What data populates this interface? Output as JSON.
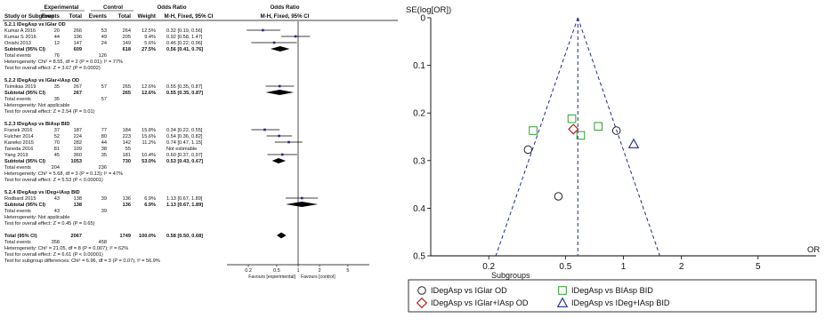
{
  "chart_data": [
    {
      "type": "forest",
      "header": {
        "group1": "Experimental",
        "group2": "Control",
        "or_top": "Odds Ratio",
        "or_top2": "Odds Ratio",
        "cols": [
          "Study or Subgroup",
          "Events",
          "Total",
          "Events",
          "Total",
          "Weight",
          "M-H, Fixed, 95% CI",
          "M-H, Fixed, 95% CI"
        ]
      },
      "rows": [
        {
          "kind": "heading",
          "label": "5.2.1 IDegAsp vs IGlar OD"
        },
        {
          "kind": "study",
          "label": "Kumar A 2016",
          "e1": "20",
          "t1": "266",
          "e2": "53",
          "t2": "264",
          "w": "12.5%",
          "ci": "0.32 [0.19, 0.56]",
          "or": 0.32,
          "lo": 0.19,
          "hi": 0.56
        },
        {
          "kind": "study",
          "label": "Kumar S 2016",
          "e1": "44",
          "t1": "196",
          "e2": "49",
          "t2": "205",
          "w": "9.4%",
          "ci": "0.92 [0.58, 1.47]",
          "or": 0.92,
          "lo": 0.58,
          "hi": 1.47
        },
        {
          "kind": "study",
          "label": "Onishi 2013",
          "e1": "12",
          "t1": "147",
          "e2": "24",
          "t2": "149",
          "w": "5.6%",
          "ci": "0.46 [0.22, 0.96]",
          "or": 0.46,
          "lo": 0.22,
          "hi": 0.96
        },
        {
          "kind": "subtotal",
          "label": "Subtotal (95% CI)",
          "e1": "",
          "t1": "609",
          "e2": "",
          "t2": "618",
          "w": "27.5%",
          "ci": "0.56 [0.41, 0.76]",
          "or": 0.56,
          "lo": 0.41,
          "hi": 0.76
        },
        {
          "kind": "text",
          "label": "Total events",
          "e1": "76",
          "e2": "126"
        },
        {
          "kind": "text",
          "label": "Heterogeneity: Chi² = 8.55, df = 2 (P = 0.01); I² = 77%"
        },
        {
          "kind": "text",
          "label": "Test for overall effect: Z = 3.67 (P = 0.0002)"
        },
        {
          "kind": "blank"
        },
        {
          "kind": "heading",
          "label": "5.2.2 IDegAsp vs IGlar+IAsp OD"
        },
        {
          "kind": "study",
          "label": "Tsimikas 2019",
          "e1": "35",
          "t1": "267",
          "e2": "57",
          "t2": "265",
          "w": "12.6%",
          "ci": "0.55 [0.35, 0.87]",
          "or": 0.55,
          "lo": 0.35,
          "hi": 0.87
        },
        {
          "kind": "subtotal",
          "label": "Subtotal (95% CI)",
          "e1": "",
          "t1": "267",
          "e2": "",
          "t2": "265",
          "w": "12.6%",
          "ci": "0.55 [0.35, 0.87]",
          "or": 0.55,
          "lo": 0.35,
          "hi": 0.87
        },
        {
          "kind": "text",
          "label": "Total events",
          "e1": "35",
          "e2": "57"
        },
        {
          "kind": "text",
          "label": "Heterogeneity: Not applicable"
        },
        {
          "kind": "text",
          "label": "Test for overall effect: Z = 2.54 (P = 0.01)"
        },
        {
          "kind": "blank"
        },
        {
          "kind": "heading",
          "label": "5.2.3 IDegAsp vs BIAsp BID"
        },
        {
          "kind": "study",
          "label": "Franek 2016",
          "e1": "37",
          "t1": "187",
          "e2": "77",
          "t2": "184",
          "w": "15.8%",
          "ci": "0.34 [0.22, 0.55]",
          "or": 0.34,
          "lo": 0.22,
          "hi": 0.55
        },
        {
          "kind": "study",
          "label": "Fulcher 2014",
          "e1": "52",
          "t1": "224",
          "e2": "80",
          "t2": "223",
          "w": "15.6%",
          "ci": "0.54 [0.36, 0.82]",
          "or": 0.54,
          "lo": 0.36,
          "hi": 0.82
        },
        {
          "kind": "study",
          "label": "Kaneko 2015",
          "e1": "70",
          "t1": "282",
          "e2": "44",
          "t2": "142",
          "w": "11.2%",
          "ci": "0.74 [0.47, 1.15]",
          "or": 0.74,
          "lo": 0.47,
          "hi": 1.15
        },
        {
          "kind": "study",
          "label": "Taneda 2016",
          "e1": "81",
          "t1": "109",
          "e2": "38",
          "t2": "55",
          "w": "",
          "ci": "Not estimable"
        },
        {
          "kind": "study",
          "label": "Yang 2019",
          "e1": "45",
          "t1": "360",
          "e2": "35",
          "t2": "181",
          "w": "10.4%",
          "ci": "0.60 [0.37, 0.97]",
          "or": 0.6,
          "lo": 0.37,
          "hi": 0.97
        },
        {
          "kind": "subtotal",
          "label": "Subtotal (95% CI)",
          "e1": "",
          "t1": "1053",
          "e2": "",
          "t2": "730",
          "w": "53.0%",
          "ci": "0.53 [0.43, 0.67]",
          "or": 0.53,
          "lo": 0.43,
          "hi": 0.67
        },
        {
          "kind": "text",
          "label": "Total events",
          "e1": "204",
          "e2": "236"
        },
        {
          "kind": "text",
          "label": "Heterogeneity: Chi² = 5.68, df = 3 (P = 0.13); I² = 47%"
        },
        {
          "kind": "text",
          "label": "Test for overall effect: Z = 5.53 (P < 0.00001)"
        },
        {
          "kind": "blank"
        },
        {
          "kind": "heading",
          "label": "5.2.4 IDegAsp vs IDeg+IAsp BID"
        },
        {
          "kind": "study",
          "label": "Rodbard 2015",
          "e1": "43",
          "t1": "138",
          "e2": "39",
          "t2": "136",
          "w": "6.9%",
          "ci": "1.13 [0.67, 1.89]",
          "or": 1.13,
          "lo": 0.67,
          "hi": 1.89
        },
        {
          "kind": "subtotal",
          "label": "Subtotal (95% CI)",
          "e1": "",
          "t1": "138",
          "e2": "",
          "t2": "136",
          "w": "6.9%",
          "ci": "1.13 [0.67, 1.89]",
          "or": 1.13,
          "lo": 0.67,
          "hi": 1.89
        },
        {
          "kind": "text",
          "label": "Total events",
          "e1": "43",
          "e2": "39"
        },
        {
          "kind": "text",
          "label": "Heterogeneity: Not applicable"
        },
        {
          "kind": "text",
          "label": "Test for overall effect: Z = 0.45 (P = 0.65)"
        },
        {
          "kind": "blank"
        },
        {
          "kind": "total",
          "label": "Total (95% CI)",
          "e1": "",
          "t1": "2067",
          "e2": "",
          "t2": "1749",
          "w": "100.0%",
          "ci": "0.58 [0.50, 0.68]",
          "or": 0.58,
          "lo": 0.5,
          "hi": 0.68
        },
        {
          "kind": "text",
          "label": "Total events",
          "e1": "358",
          "e2": "458"
        },
        {
          "kind": "text",
          "label": "Heterogeneity: Chi² = 21.05, df = 8 (P = 0.007); I² = 62%"
        },
        {
          "kind": "text",
          "label": "Test for overall effect: Z = 6.61 (P < 0.00001)"
        },
        {
          "kind": "text",
          "label": "Test for subgroup differences: Chi² = 6.96, df = 3 (P = 0.07), I² = 56.9%"
        }
      ],
      "axis": {
        "scale": "log",
        "xlim": [
          0.1,
          10
        ],
        "ticks": [
          "0.2",
          "0.5",
          "1",
          "2",
          "5"
        ],
        "tick_values": [
          0.2,
          0.5,
          1,
          2,
          5
        ],
        "left_label": "Favours [experimental]",
        "right_label": "Favours [control]"
      },
      "colors": {
        "study_marker": "#1f2a8c",
        "line": "#000000"
      }
    },
    {
      "type": "scatter",
      "ylabel": "SE(log[OR])",
      "xlabel": "OR",
      "x_scale": "log",
      "xlim": [
        0.1,
        10
      ],
      "x_ticks": [
        "0.2",
        "0.5",
        "1",
        "2",
        "5"
      ],
      "x_tick_values": [
        0.2,
        0.5,
        1,
        2,
        5
      ],
      "ylim": [
        0,
        0.5
      ],
      "y_ticks": [
        "0",
        "0.1",
        "0.2",
        "0.3",
        "0.4",
        "0.5"
      ],
      "y_tick_values": [
        0,
        0.1,
        0.2,
        0.3,
        0.4,
        0.5
      ],
      "pooled_or": 0.58,
      "legend": {
        "title": "Subgroups"
      },
      "series": [
        {
          "name": "IDegAsp vs IGlar OD",
          "marker": "circle",
          "color": "#222222",
          "points": [
            [
              0.32,
              0.277
            ],
            [
              0.92,
              0.237
            ],
            [
              0.46,
              0.375
            ]
          ]
        },
        {
          "name": "IDegAsp vs IGlar+IAsp OD",
          "marker": "diamond",
          "color": "#b22222",
          "points": [
            [
              0.55,
              0.234
            ]
          ]
        },
        {
          "name": "IDegAsp vs BIAsp BID",
          "marker": "square",
          "color": "#2ca02c",
          "points": [
            [
              0.34,
              0.237
            ],
            [
              0.54,
              0.212
            ],
            [
              0.74,
              0.228
            ],
            [
              0.6,
              0.247
            ]
          ]
        },
        {
          "name": "IDegAsp vs IDeg+IAsp BID",
          "marker": "triangle",
          "color": "#1f2a8c",
          "points": [
            [
              1.13,
              0.265
            ]
          ]
        }
      ]
    }
  ]
}
